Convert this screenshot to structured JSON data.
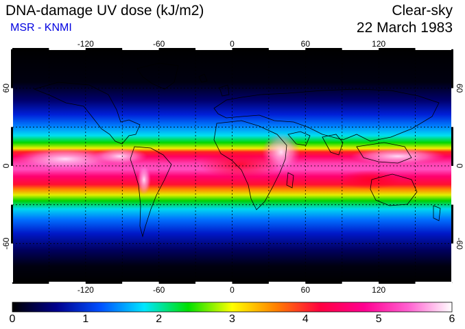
{
  "header": {
    "title": "DNA-damage UV dose (kJ/m2)",
    "credit": "MSR - KNMI",
    "condition": "Clear-sky",
    "date": "22 March 1983"
  },
  "map": {
    "lon_ticks": [
      "-120",
      "-60",
      "0",
      "60",
      "120"
    ],
    "lat_ticks": [
      "60",
      "0",
      "-60"
    ],
    "lon_range": [
      -180,
      180
    ],
    "lat_range": [
      -90,
      90
    ],
    "grid_spacing_deg": 30,
    "graticule": "dotted"
  },
  "colorbar": {
    "labels": [
      "0",
      "1",
      "2",
      "3",
      "4",
      "5",
      "6"
    ],
    "range": [
      0,
      6
    ],
    "colors": [
      "#000000",
      "#00008c",
      "#0050ff",
      "#00e6ff",
      "#00e000",
      "#ffff00",
      "#ff8000",
      "#ff0040",
      "#ff0090",
      "#ff60d0",
      "#ffffff"
    ]
  }
}
